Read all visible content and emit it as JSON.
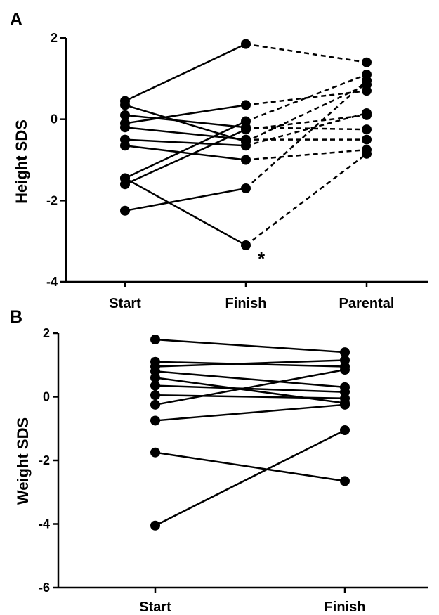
{
  "chart_data": [
    {
      "type": "line",
      "panel_label": "A",
      "ylabel": "Height SDS",
      "categories": [
        "Start",
        "Finish",
        "Parental"
      ],
      "ylim": [
        -4,
        2
      ],
      "yticks": [
        "2",
        "0",
        "-2",
        "-4"
      ],
      "ytick_values": [
        2,
        0,
        -2,
        -4
      ],
      "grid": false,
      "annotation": {
        "text": "*",
        "near": "Finish value -3.1"
      },
      "series": [
        {
          "values": [
            0.45,
            1.85,
            1.4
          ]
        },
        {
          "values": [
            -0.1,
            0.35,
            0.7
          ]
        },
        {
          "values": [
            0.35,
            -0.55,
            0.85
          ]
        },
        {
          "values": [
            -0.2,
            -0.5,
            -0.5
          ]
        },
        {
          "values": [
            0.1,
            -0.2,
            -0.25
          ]
        },
        {
          "values": [
            -0.5,
            -0.65,
            0.15
          ]
        },
        {
          "values": [
            -0.65,
            -1.0,
            -0.75
          ]
        },
        {
          "values": [
            -1.45,
            -0.05,
            1.1
          ]
        },
        {
          "values": [
            -1.6,
            -0.25,
            0.1
          ]
        },
        {
          "values": [
            -1.45,
            -3.1,
            -0.85
          ]
        },
        {
          "values": [
            -2.25,
            -1.7,
            0.95
          ]
        }
      ],
      "line_styles": [
        "solid",
        "dashed"
      ]
    },
    {
      "type": "line",
      "panel_label": "B",
      "ylabel": "Weight SDS",
      "categories": [
        "Start",
        "Finish"
      ],
      "ylim": [
        -6,
        2
      ],
      "yticks": [
        "2",
        "0",
        "-2",
        "-4",
        "-6"
      ],
      "ytick_values": [
        2,
        0,
        -2,
        -4,
        -6
      ],
      "grid": false,
      "series": [
        {
          "values": [
            1.8,
            1.4
          ]
        },
        {
          "values": [
            1.1,
            0.95
          ]
        },
        {
          "values": [
            0.95,
            1.15
          ]
        },
        {
          "values": [
            0.8,
            0.3
          ]
        },
        {
          "values": [
            0.6,
            -0.2
          ]
        },
        {
          "values": [
            0.35,
            0.15
          ]
        },
        {
          "values": [
            0.05,
            -0.05
          ]
        },
        {
          "values": [
            -0.25,
            0.85
          ]
        },
        {
          "values": [
            -0.75,
            -0.25
          ]
        },
        {
          "values": [
            -1.75,
            -2.65
          ]
        },
        {
          "values": [
            -4.05,
            -1.05
          ]
        }
      ],
      "line_styles": [
        "solid"
      ]
    }
  ]
}
